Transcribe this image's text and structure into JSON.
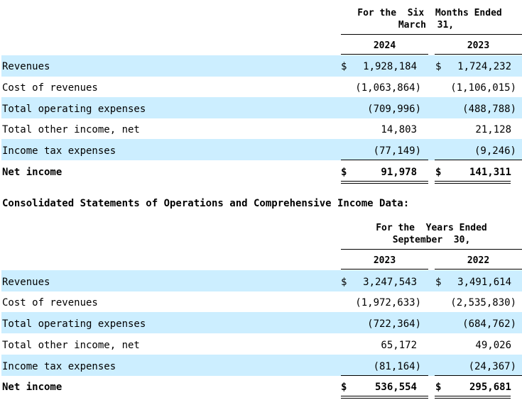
{
  "table1": {
    "header_line1": "For the  Six  Months Ended",
    "header_line2": "March  31,",
    "col_a": "2024",
    "col_b": "2023",
    "rows": [
      {
        "label": "Revenues",
        "a": "1,928,184",
        "b": "1,724,232",
        "a_dollar": "$",
        "b_dollar": "$"
      },
      {
        "label": "Cost of revenues",
        "a": "(1,063,864)",
        "b": "(1,106,015)"
      },
      {
        "label": "Total operating expenses",
        "a": "(709,996)",
        "b": "(488,788)"
      },
      {
        "label": "Total other income, net",
        "a": "14,803",
        "b": "21,128"
      },
      {
        "label": "Income tax expenses",
        "a": "(77,149)",
        "b": "(9,246)"
      },
      {
        "label": "Net income",
        "a": "91,978",
        "b": "141,311",
        "a_dollar": "$",
        "b_dollar": "$"
      }
    ]
  },
  "section_title": "Consolidated Statements of Operations and Comprehensive Income Data:",
  "table2": {
    "header_line1": "For the  Years Ended",
    "header_line2": "September  30,",
    "col_a": "2023",
    "col_b": "2022",
    "rows": [
      {
        "label": "Revenues",
        "a": "3,247,543",
        "b": "3,491,614",
        "a_dollar": "$",
        "b_dollar": "$"
      },
      {
        "label": "Cost of revenues",
        "a": "(1,972,633)",
        "b": "(2,535,830)"
      },
      {
        "label": "Total operating expenses",
        "a": "(722,364)",
        "b": "(684,762)"
      },
      {
        "label": "Total other income, net",
        "a": "65,172",
        "b": "49,026"
      },
      {
        "label": "Income tax expenses",
        "a": "(81,164)",
        "b": "(24,367)"
      },
      {
        "label": "Net income",
        "a": "536,554",
        "b": "295,681",
        "a_dollar": "$",
        "b_dollar": "$"
      }
    ]
  }
}
